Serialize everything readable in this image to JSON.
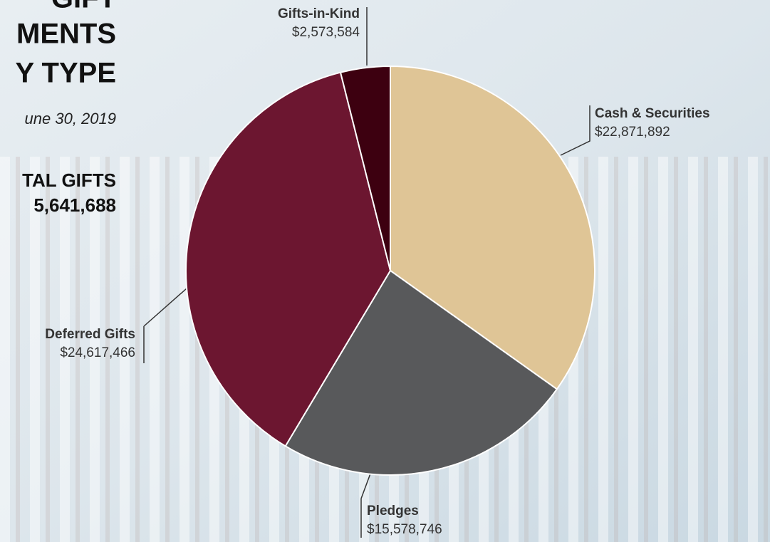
{
  "chart_data": {
    "type": "pie",
    "title_lines": [
      "GIFT",
      "MENTS",
      "Y TYPE"
    ],
    "subtitle": "une 30, 2019",
    "total_label": "TAL GIFTS",
    "total_value_label": "5,641,688",
    "categories": [
      "Cash & Securities",
      "Pledges",
      "Deferred Gifts",
      "Gifts-in-Kind"
    ],
    "values": [
      22871892,
      15578746,
      24617466,
      2573584
    ],
    "value_labels": [
      "$22,871,892",
      "$15,578,746",
      "$24,617,466",
      "$2,573,584"
    ],
    "colors": [
      "#dfc596",
      "#58595b",
      "#6c1630",
      "#3d0010"
    ]
  }
}
